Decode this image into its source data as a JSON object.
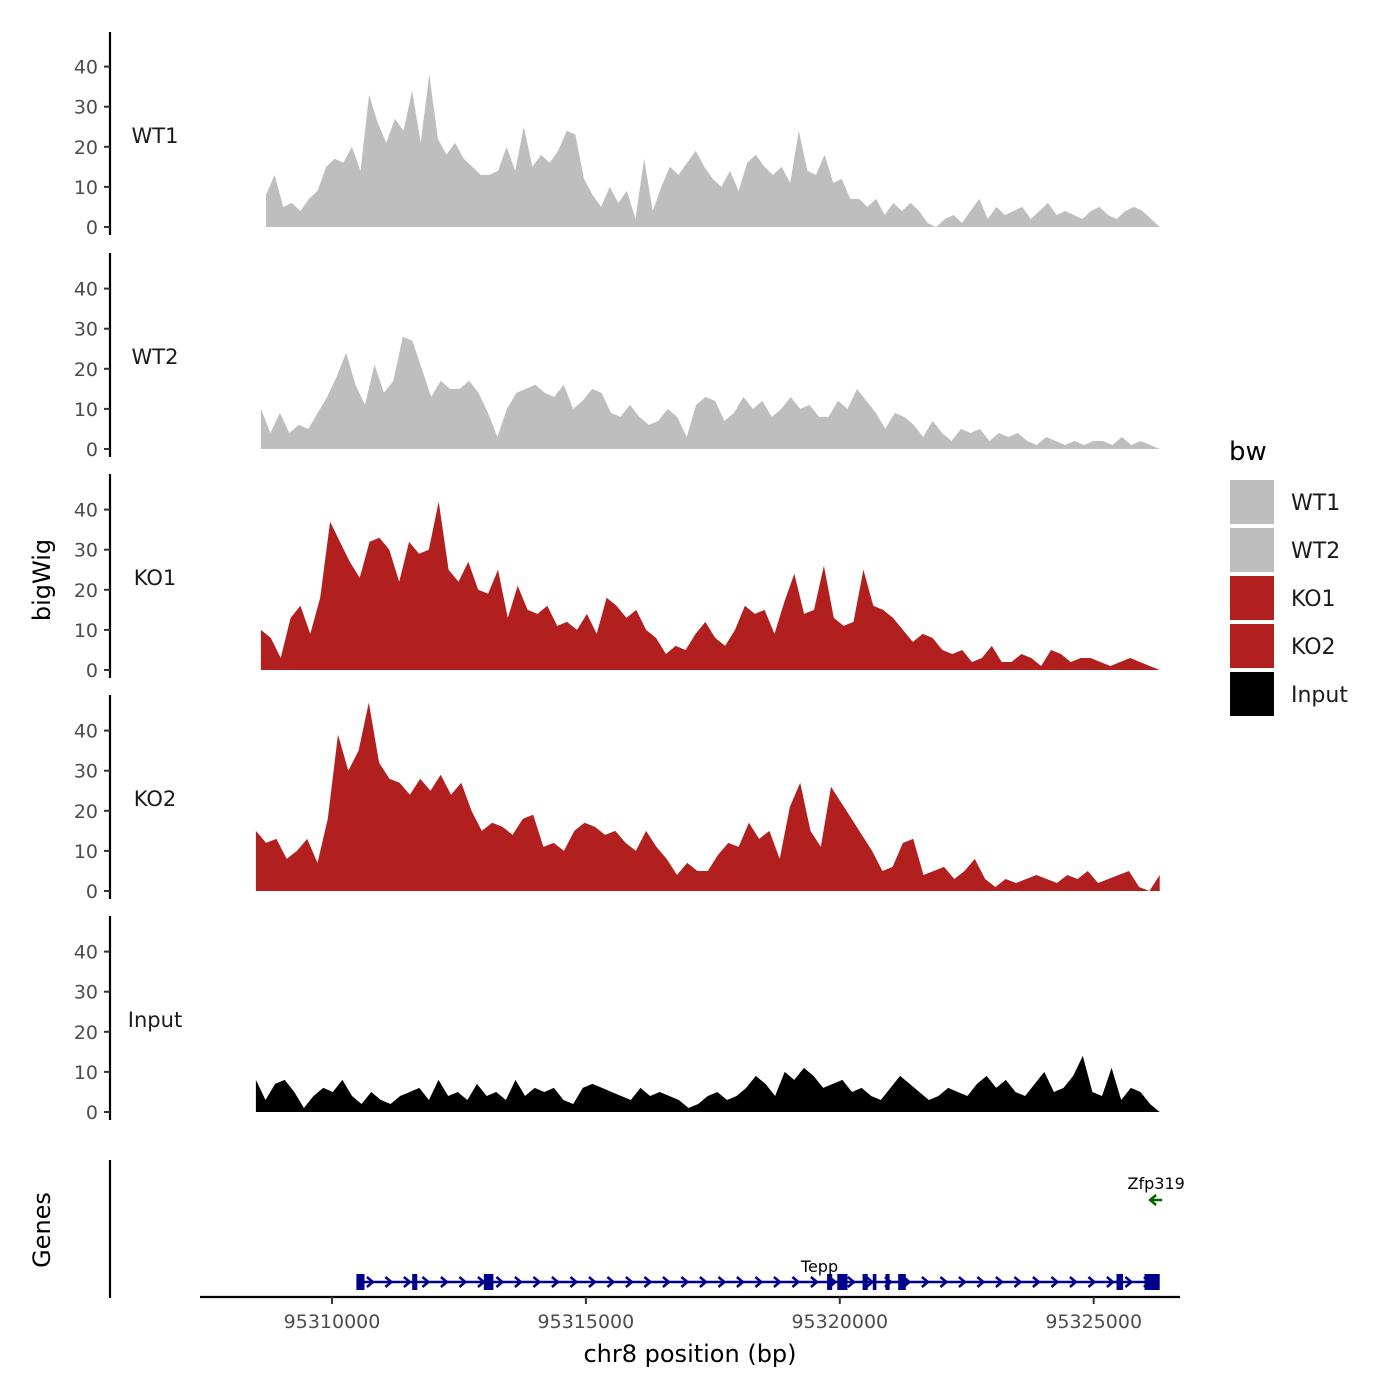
{
  "chart_data": {
    "type": "area",
    "title": "",
    "xlabel": "chr8 position (bp)",
    "ylabel": "bigWig",
    "genes_panel_label": "Genes",
    "xlim": [
      95307400,
      95326700
    ],
    "x_ticks": [
      95310000,
      95315000,
      95320000,
      95325000
    ],
    "x_tick_labels": [
      "95310000",
      "95315000",
      "95320000",
      "95325000"
    ],
    "ylim": [
      0,
      48
    ],
    "y_ticks": [
      0,
      10,
      20,
      30,
      40
    ],
    "y_tick_labels": [
      "0",
      "10",
      "20",
      "30",
      "40"
    ],
    "legend": {
      "title": "bw",
      "position": "right",
      "entries": [
        {
          "label": "WT1",
          "color": "#bebebe"
        },
        {
          "label": "WT2",
          "color": "#bebebe"
        },
        {
          "label": "KO1",
          "color": "#b21f1f"
        },
        {
          "label": "KO2",
          "color": "#b21f1f"
        },
        {
          "label": "Input",
          "color": "#000000"
        }
      ]
    },
    "series": [
      {
        "name": "WT1",
        "color": "#bebebe",
        "x_start": 95308700,
        "x_end": 95326300,
        "values": [
          8,
          13,
          5,
          6,
          4,
          7,
          9,
          15,
          17,
          16,
          20,
          14,
          33,
          26,
          21,
          27,
          24,
          34,
          21,
          38,
          22,
          18,
          21,
          17,
          15,
          13,
          13,
          14,
          20,
          14,
          25,
          15,
          18,
          16,
          19,
          24,
          23,
          12,
          8,
          5,
          10,
          6,
          9,
          2,
          17,
          4,
          10,
          15,
          13,
          16,
          19,
          15,
          12,
          10,
          14,
          9,
          16,
          18,
          15,
          13,
          15,
          11,
          24,
          14,
          13,
          18,
          11,
          12,
          7,
          7,
          5,
          7,
          3,
          6,
          4,
          6,
          4,
          1,
          0,
          2,
          3,
          1,
          4,
          7,
          2,
          5,
          3,
          4,
          5,
          2,
          4,
          6,
          3,
          4,
          3,
          2,
          4,
          5,
          3,
          2,
          4,
          5,
          4,
          2,
          0
        ]
      },
      {
        "name": "WT2",
        "color": "#bebebe",
        "x_start": 95308600,
        "x_end": 95326300,
        "values": [
          10,
          4,
          9,
          4,
          6,
          5,
          9,
          13,
          18,
          24,
          16,
          11,
          21,
          14,
          17,
          28,
          27,
          20,
          13,
          17,
          15,
          15,
          17,
          14,
          9,
          3,
          10,
          14,
          15,
          16,
          14,
          13,
          16,
          10,
          12,
          15,
          14,
          9,
          8,
          11,
          8,
          6,
          7,
          10,
          8,
          3,
          11,
          13,
          12,
          7,
          9,
          13,
          10,
          12,
          8,
          10,
          13,
          10,
          11,
          8,
          8,
          12,
          10,
          15,
          12,
          9,
          5,
          9,
          8,
          6,
          3,
          7,
          4,
          2,
          5,
          4,
          5,
          2,
          4,
          3,
          4,
          2,
          1,
          3,
          2,
          1,
          2,
          1,
          2,
          2,
          1,
          3,
          1,
          2,
          1,
          0
        ]
      },
      {
        "name": "KO1",
        "color": "#b21f1f",
        "x_start": 95308600,
        "x_end": 95326300,
        "values": [
          10,
          8,
          3,
          13,
          16,
          9,
          18,
          37,
          32,
          27,
          23,
          32,
          33,
          30,
          22,
          32,
          29,
          30,
          42,
          25,
          22,
          27,
          20,
          19,
          25,
          13,
          21,
          15,
          14,
          16,
          11,
          12,
          10,
          14,
          9,
          18,
          16,
          13,
          15,
          10,
          8,
          4,
          6,
          5,
          9,
          12,
          8,
          6,
          10,
          16,
          14,
          15,
          9,
          17,
          24,
          14,
          15,
          26,
          13,
          11,
          12,
          25,
          16,
          15,
          13,
          10,
          7,
          9,
          8,
          5,
          4,
          5,
          2,
          3,
          6,
          2,
          2,
          4,
          3,
          1,
          5,
          4,
          2,
          3,
          3,
          2,
          1,
          2,
          3,
          2,
          1,
          0
        ]
      },
      {
        "name": "KO2",
        "color": "#b21f1f",
        "x_start": 95308500,
        "x_end": 95326300,
        "values": [
          15,
          12,
          13,
          8,
          10,
          13,
          7,
          18,
          39,
          30,
          35,
          47,
          32,
          28,
          27,
          24,
          28,
          25,
          29,
          24,
          27,
          20,
          15,
          17,
          16,
          14,
          18,
          19,
          11,
          12,
          10,
          15,
          17,
          16,
          14,
          15,
          12,
          10,
          15,
          11,
          8,
          4,
          7,
          5,
          5,
          9,
          12,
          11,
          17,
          13,
          15,
          8,
          21,
          27,
          15,
          11,
          26,
          22,
          18,
          14,
          10,
          5,
          6,
          12,
          13,
          4,
          5,
          6,
          3,
          5,
          8,
          3,
          1,
          3,
          2,
          3,
          4,
          3,
          2,
          4,
          3,
          5,
          2,
          3,
          4,
          5,
          1,
          0,
          4
        ]
      },
      {
        "name": "Input",
        "color": "#000000",
        "x_start": 95308500,
        "x_end": 95326300,
        "values": [
          8,
          3,
          7,
          8,
          5,
          1,
          4,
          6,
          5,
          8,
          4,
          2,
          5,
          3,
          2,
          4,
          5,
          6,
          3,
          8,
          4,
          5,
          3,
          7,
          4,
          5,
          3,
          8,
          4,
          6,
          5,
          6,
          3,
          2,
          6,
          7,
          6,
          5,
          4,
          3,
          6,
          4,
          5,
          4,
          3,
          1,
          2,
          4,
          5,
          3,
          4,
          6,
          9,
          7,
          4,
          10,
          8,
          11,
          9,
          6,
          7,
          8,
          5,
          6,
          4,
          3,
          6,
          9,
          7,
          5,
          3,
          4,
          6,
          5,
          4,
          7,
          9,
          6,
          8,
          5,
          4,
          7,
          10,
          5,
          6,
          9,
          14,
          5,
          4,
          11,
          3,
          6,
          5,
          2,
          0
        ]
      }
    ],
    "genes": [
      {
        "name": "Tepp",
        "strand": "+",
        "color": "#00008b",
        "start": 95310550,
        "end": 95326250,
        "exons": [
          [
            95310480,
            95310640
          ],
          [
            95311580,
            95311680
          ],
          [
            95312990,
            95313180
          ],
          [
            95319750,
            95319850
          ],
          [
            95319950,
            95320150
          ],
          [
            95320450,
            95320550
          ],
          [
            95320650,
            95320720
          ],
          [
            95320900,
            95320980
          ],
          [
            95321150,
            95321300
          ],
          [
            95325450,
            95325580
          ],
          [
            95326000,
            95326300
          ]
        ]
      },
      {
        "name": "Zfp319",
        "strand": "-",
        "color": "#006400",
        "start": 95326150,
        "end": 95326350,
        "exons": []
      }
    ]
  }
}
